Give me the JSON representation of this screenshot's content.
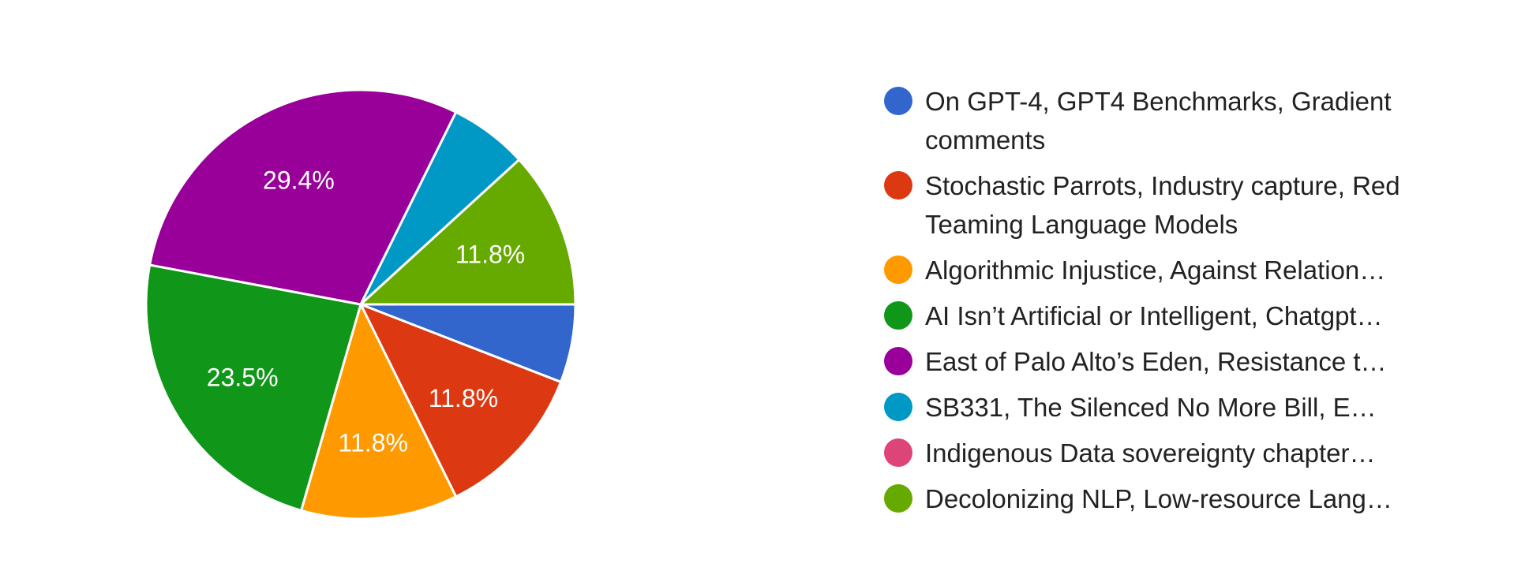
{
  "chart_data": {
    "type": "pie",
    "title": "",
    "legend_position": "right",
    "slices": [
      {
        "label": "On GPT-4, GPT4 Benchmarks, Gradient comments",
        "value": 5.9,
        "display": "",
        "color": "#3366cc"
      },
      {
        "label": "Stochastic Parrots, Industry capture, Red Teaming Language Models",
        "value": 11.8,
        "display": "11.8%",
        "color": "#dc3912"
      },
      {
        "label": "Algorithmic Injustice, Against Relation…",
        "value": 11.8,
        "display": "11.8%",
        "color": "#ff9900"
      },
      {
        "label": "AI Isn’t Artificial or Intelligent, Chatgpt…",
        "value": 23.5,
        "display": "23.5%",
        "color": "#109618"
      },
      {
        "label": "East of Palo Alto’s Eden, Resistance t…",
        "value": 29.4,
        "display": "29.4%",
        "color": "#990099"
      },
      {
        "label": "SB331, The Silenced No More Bill, E…",
        "value": 5.9,
        "display": "",
        "color": "#0099c6"
      },
      {
        "label": "Indigenous Data sovereignty chapter…",
        "value": 0,
        "display": "",
        "color": "#dd4477"
      },
      {
        "label": "Decolonizing NLP, Low-resource Lang…",
        "value": 11.8,
        "display": "11.8%",
        "color": "#66aa00"
      }
    ]
  }
}
